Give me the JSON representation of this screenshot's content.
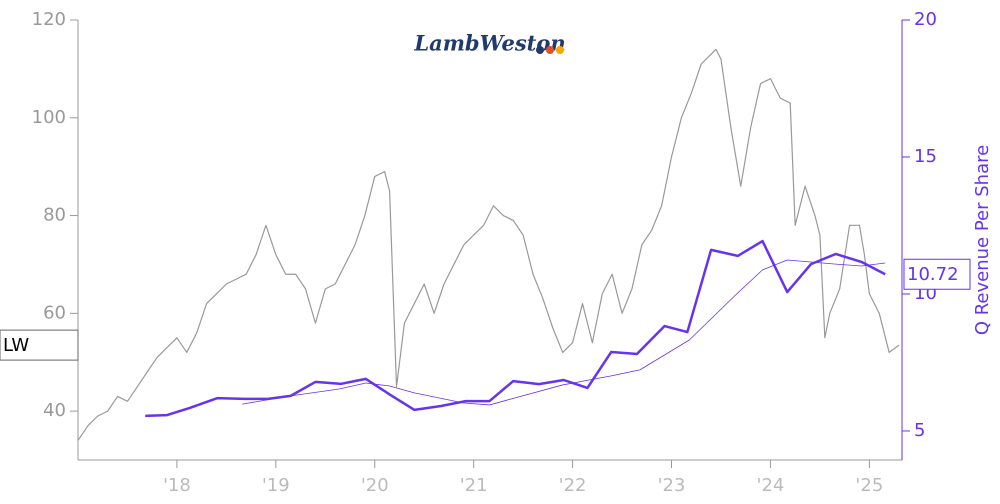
{
  "chart_data": {
    "type": "line",
    "logo": "LambWeston",
    "xlim": [
      2017.0,
      2025.33
    ],
    "xticks": [
      {
        "value": 2018,
        "label": "'18"
      },
      {
        "value": 2019,
        "label": "'19"
      },
      {
        "value": 2020,
        "label": "'20"
      },
      {
        "value": 2021,
        "label": "'21"
      },
      {
        "value": 2022,
        "label": "'22"
      },
      {
        "value": 2023,
        "label": "'23"
      },
      {
        "value": 2024,
        "label": "'24"
      },
      {
        "value": 2025,
        "label": "'25"
      }
    ],
    "ylim": [
      30,
      120
    ],
    "yticks": [
      40,
      60,
      80,
      100,
      120
    ],
    "y2lim": [
      3.94,
      20
    ],
    "y2ticks": [
      5,
      10,
      15,
      20
    ],
    "y2label": "Q Revenue Per Share",
    "series": [
      {
        "name": "LW",
        "color": "#999999",
        "line_width": 1.2,
        "x": [
          2017.0,
          2017.1,
          2017.2,
          2017.3,
          2017.4,
          2017.5,
          2017.6,
          2017.7,
          2017.8,
          2017.9,
          2018.0,
          2018.1,
          2018.2,
          2018.3,
          2018.4,
          2018.5,
          2018.6,
          2018.7,
          2018.8,
          2018.9,
          2019.0,
          2019.1,
          2019.2,
          2019.3,
          2019.4,
          2019.5,
          2019.6,
          2019.7,
          2019.8,
          2019.9,
          2020.0,
          2020.1,
          2020.15,
          2020.22,
          2020.3,
          2020.4,
          2020.5,
          2020.6,
          2020.7,
          2020.8,
          2020.9,
          2021.0,
          2021.1,
          2021.2,
          2021.3,
          2021.4,
          2021.5,
          2021.6,
          2021.7,
          2021.8,
          2021.9,
          2022.0,
          2022.1,
          2022.2,
          2022.3,
          2022.4,
          2022.5,
          2022.6,
          2022.7,
          2022.8,
          2022.9,
          2023.0,
          2023.1,
          2023.2,
          2023.3,
          2023.4,
          2023.45,
          2023.5,
          2023.6,
          2023.7,
          2023.8,
          2023.9,
          2024.0,
          2024.1,
          2024.2,
          2024.25,
          2024.35,
          2024.45,
          2024.5,
          2024.55,
          2024.6,
          2024.7,
          2024.8,
          2024.9,
          2024.95,
          2025.0,
          2025.1,
          2025.2,
          2025.3
        ],
        "values": [
          34,
          37,
          39,
          40,
          43,
          42,
          45,
          48,
          51,
          53,
          55,
          52,
          56,
          62,
          64,
          66,
          67,
          68,
          72,
          78,
          72,
          68,
          68,
          65,
          58,
          65,
          66,
          70,
          74,
          80,
          88,
          89,
          85,
          45,
          58,
          62,
          66,
          60,
          66,
          70,
          74,
          76,
          78,
          82,
          80,
          79,
          76,
          68,
          63,
          57,
          52,
          54,
          62,
          54,
          64,
          68,
          60,
          65,
          74,
          77,
          82,
          92,
          100,
          105,
          111,
          113,
          114,
          112,
          98,
          86,
          98,
          107,
          108,
          104,
          103,
          78,
          86,
          80,
          76,
          55,
          60,
          65,
          78,
          78,
          72,
          64,
          60,
          52,
          53.5
        ]
      },
      {
        "color": "#6633ee",
        "axis": "y2",
        "line_width": 2.5,
        "x": [
          2017.68,
          2017.9,
          2018.13,
          2018.41,
          2018.68,
          2018.92,
          2019.15,
          2019.4,
          2019.66,
          2019.91,
          2020.16,
          2020.4,
          2020.67,
          2020.92,
          2021.16,
          2021.4,
          2021.66,
          2021.91,
          2022.15,
          2022.39,
          2022.65,
          2022.93,
          2023.16,
          2023.4,
          2023.67,
          2023.92,
          2024.17,
          2024.41,
          2024.66,
          2024.92,
          2025.16
        ],
        "values": [
          5.55,
          5.58,
          5.84,
          6.2,
          6.17,
          6.17,
          6.28,
          6.79,
          6.72,
          6.9,
          6.31,
          5.77,
          5.91,
          6.09,
          6.09,
          6.82,
          6.71,
          6.86,
          6.57,
          7.88,
          7.81,
          8.83,
          8.61,
          11.61,
          11.39,
          11.93,
          10.07,
          11.09,
          11.46,
          11.17,
          10.72
        ]
      },
      {
        "color": "#6633ee",
        "axis": "y2",
        "line_width": 0.8,
        "x": [
          2018.66,
          2019.15,
          2019.64,
          2019.91,
          2020.15,
          2020.4,
          2020.9,
          2021.16,
          2021.41,
          2021.9,
          2022.39,
          2022.68,
          2023.18,
          2023.67,
          2023.92,
          2024.17,
          2024.66,
          2024.92,
          2025.16
        ],
        "values": [
          5.98,
          6.28,
          6.53,
          6.75,
          6.64,
          6.39,
          6.02,
          5.95,
          6.2,
          6.68,
          7.01,
          7.23,
          8.32,
          10.04,
          10.88,
          11.24,
          11.09,
          11.02,
          11.13
        ]
      }
    ]
  }
}
